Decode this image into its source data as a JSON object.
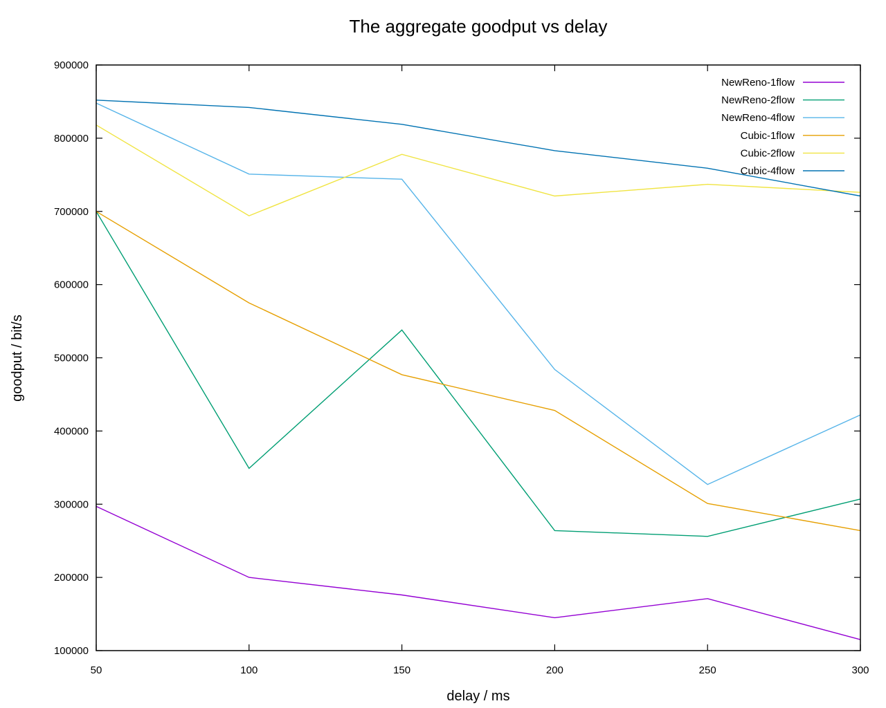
{
  "chart_data": {
    "type": "line",
    "title": "The aggregate goodput vs delay",
    "xlabel": "delay / ms",
    "ylabel": "goodput / bit/s",
    "xlim": [
      50,
      300
    ],
    "ylim": [
      100000,
      900000
    ],
    "x_ticks": [
      50,
      100,
      150,
      200,
      250,
      300
    ],
    "y_ticks": [
      100000,
      200000,
      300000,
      400000,
      500000,
      600000,
      700000,
      800000,
      900000
    ],
    "grid": false,
    "legend": "top-right",
    "x": [
      50,
      100,
      150,
      200,
      250,
      300
    ],
    "series": [
      {
        "name": "NewReno-1flow",
        "color": "#9400d3",
        "values": [
          297000,
          200000,
          176000,
          145000,
          171000,
          115000
        ]
      },
      {
        "name": "NewReno-2flow",
        "color": "#009e73",
        "values": [
          700000,
          349000,
          538000,
          264000,
          256000,
          307000
        ]
      },
      {
        "name": "NewReno-4flow",
        "color": "#56b4e9",
        "values": [
          848000,
          751000,
          744000,
          484000,
          327000,
          422000
        ]
      },
      {
        "name": "Cubic-1flow",
        "color": "#e69f00",
        "values": [
          700000,
          575000,
          477000,
          428000,
          301000,
          264000
        ]
      },
      {
        "name": "Cubic-2flow",
        "color": "#f0e442",
        "values": [
          818000,
          694000,
          778000,
          721000,
          737000,
          726000
        ]
      },
      {
        "name": "Cubic-4flow",
        "color": "#0072b2",
        "values": [
          852000,
          842000,
          819000,
          783000,
          759000,
          721000
        ]
      }
    ]
  }
}
